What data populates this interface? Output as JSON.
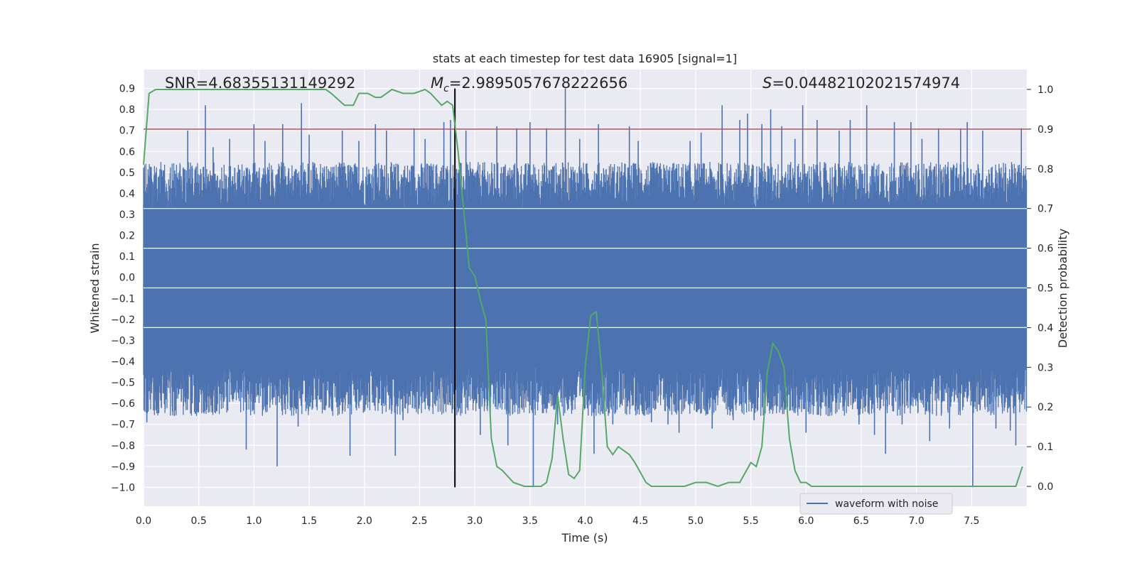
{
  "chart_data": {
    "type": "line",
    "title": "stats at each timestep for test data 16905 [signal=1]",
    "xlabel": "Time (s)",
    "ylabel_left": "Whitened strain",
    "ylabel_right": "Detection probability",
    "xlim": [
      0,
      8
    ],
    "ylim_left": [
      -1.09,
      0.99
    ],
    "ylim_right": [
      -0.05,
      1.05
    ],
    "x_ticks": [
      0.0,
      0.5,
      1.0,
      1.5,
      2.0,
      2.5,
      3.0,
      3.5,
      4.0,
      4.5,
      5.0,
      5.5,
      6.0,
      6.5,
      7.0,
      7.5
    ],
    "x_tick_labels": [
      "0.0",
      "0.5",
      "1.0",
      "1.5",
      "2.0",
      "2.5",
      "3.0",
      "3.5",
      "4.0",
      "4.5",
      "5.0",
      "5.5",
      "6.0",
      "6.5",
      "7.0",
      "7.5"
    ],
    "y_left_ticks": [
      0.9,
      0.8,
      0.7,
      0.6,
      0.5,
      0.4,
      0.3,
      0.2,
      0.1,
      0.0,
      -0.1,
      -0.2,
      -0.3,
      -0.4,
      -0.5,
      -0.6,
      -0.7,
      -0.8,
      -0.9,
      -1.0
    ],
    "y_left_tick_labels": [
      "0.9",
      "0.8",
      "0.7",
      "0.6",
      "0.5",
      "0.4",
      "0.3",
      "0.2",
      "0.1",
      "0.0",
      "−0.1",
      "−0.2",
      "−0.3",
      "−0.4",
      "−0.5",
      "−0.6",
      "−0.7",
      "−0.8",
      "−0.9",
      "−1.0"
    ],
    "y_right_ticks": [
      1.0,
      0.9,
      0.8,
      0.7,
      0.6,
      0.5,
      0.4,
      0.3,
      0.2,
      0.1,
      0.0
    ],
    "y_right_tick_labels": [
      "1.0",
      "0.9",
      "0.8",
      "0.7",
      "0.6",
      "0.5",
      "0.4",
      "0.3",
      "0.2",
      "0.1",
      "0.0"
    ],
    "annotations": {
      "snr": "SNR=4.68355131149292",
      "mc_symbol": "M",
      "mc_sub": "c",
      "mc_value": "=2.9895057678222656",
      "s_symbol": "S",
      "s_value": "=0.04482102021574974"
    },
    "threshold_right": 0.9,
    "vertical_line_x": 2.82,
    "legend": {
      "label": "waveform with noise",
      "placement": "lower-right"
    },
    "waveform": {
      "name": "waveform with noise",
      "duration_s": 8.0,
      "core_band": [
        -0.42,
        0.33
      ],
      "spikes": [
        [
          0.03,
          -0.69
        ],
        [
          0.15,
          -0.55
        ],
        [
          0.28,
          -0.66
        ],
        [
          0.4,
          0.7
        ],
        [
          0.47,
          -0.65
        ],
        [
          0.56,
          0.82
        ],
        [
          0.63,
          0.62
        ],
        [
          0.78,
          0.66
        ],
        [
          0.93,
          -0.82
        ],
        [
          1.0,
          0.73
        ],
        [
          1.1,
          0.65
        ],
        [
          1.21,
          -0.9
        ],
        [
          1.26,
          0.73
        ],
        [
          1.4,
          -0.71
        ],
        [
          1.43,
          0.83
        ],
        [
          1.5,
          0.68
        ],
        [
          1.62,
          -0.63
        ],
        [
          1.8,
          0.7
        ],
        [
          1.87,
          -0.85
        ],
        [
          1.95,
          0.65
        ],
        [
          2.1,
          0.73
        ],
        [
          2.2,
          0.7
        ],
        [
          2.28,
          -0.85
        ],
        [
          2.35,
          -0.68
        ],
        [
          2.45,
          0.71
        ],
        [
          2.55,
          0.66
        ],
        [
          2.62,
          -0.62
        ],
        [
          2.72,
          0.74
        ],
        [
          2.78,
          0.75
        ],
        [
          2.92,
          0.7
        ],
        [
          3.05,
          -0.75
        ],
        [
          3.2,
          0.72
        ],
        [
          3.3,
          -0.8
        ],
        [
          3.38,
          0.71
        ],
        [
          3.5,
          0.74
        ],
        [
          3.53,
          -1.0
        ],
        [
          3.65,
          0.71
        ],
        [
          3.75,
          -0.7
        ],
        [
          3.82,
          0.9
        ],
        [
          3.95,
          0.66
        ],
        [
          4.08,
          -0.84
        ],
        [
          4.12,
          0.73
        ],
        [
          4.25,
          -0.7
        ],
        [
          4.4,
          0.72
        ],
        [
          4.48,
          0.65
        ],
        [
          4.6,
          -0.69
        ],
        [
          4.75,
          -0.7
        ],
        [
          4.85,
          -0.74
        ],
        [
          4.95,
          0.65
        ],
        [
          5.05,
          0.69
        ],
        [
          5.15,
          -0.72
        ],
        [
          5.24,
          0.82
        ],
        [
          5.34,
          -0.68
        ],
        [
          5.4,
          0.75
        ],
        [
          5.47,
          0.78
        ],
        [
          5.53,
          -0.68
        ],
        [
          5.6,
          0.73
        ],
        [
          5.68,
          0.8
        ],
        [
          5.78,
          0.72
        ],
        [
          5.9,
          0.66
        ],
        [
          5.97,
          0.82
        ],
        [
          6.0,
          -0.74
        ],
        [
          6.1,
          0.75
        ],
        [
          6.2,
          -0.66
        ],
        [
          6.3,
          0.7
        ],
        [
          6.4,
          0.75
        ],
        [
          6.48,
          -0.7
        ],
        [
          6.55,
          0.82
        ],
        [
          6.62,
          -0.75
        ],
        [
          6.72,
          -0.84
        ],
        [
          6.8,
          0.74
        ],
        [
          6.87,
          -0.7
        ],
        [
          6.95,
          0.74
        ],
        [
          7.05,
          0.66
        ],
        [
          7.12,
          -0.78
        ],
        [
          7.2,
          0.71
        ],
        [
          7.3,
          -0.72
        ],
        [
          7.4,
          0.71
        ],
        [
          7.46,
          0.74
        ],
        [
          7.51,
          -1.0
        ],
        [
          7.6,
          0.7
        ],
        [
          7.72,
          -0.72
        ],
        [
          7.85,
          -0.73
        ],
        [
          7.9,
          -0.8
        ],
        [
          7.95,
          0.71
        ]
      ]
    },
    "series": [
      {
        "name": "",
        "axis": "right",
        "x": [
          0.0,
          0.05,
          0.11,
          0.2,
          0.4,
          0.6,
          0.8,
          1.0,
          1.2,
          1.4,
          1.5,
          1.6,
          1.65,
          1.7,
          1.78,
          1.82,
          1.9,
          1.95,
          2.03,
          2.1,
          2.15,
          2.25,
          2.35,
          2.45,
          2.55,
          2.6,
          2.7,
          2.75,
          2.8,
          2.85,
          2.95,
          3.0,
          3.05,
          3.1,
          3.15,
          3.2,
          3.25,
          3.35,
          3.45,
          3.55,
          3.6,
          3.65,
          3.7,
          3.75,
          3.8,
          3.85,
          3.9,
          3.95,
          4.0,
          4.05,
          4.1,
          4.15,
          4.2,
          4.25,
          4.3,
          4.35,
          4.4,
          4.45,
          4.55,
          4.6,
          4.7,
          4.8,
          4.9,
          5.0,
          5.1,
          5.2,
          5.3,
          5.4,
          5.5,
          5.55,
          5.6,
          5.65,
          5.7,
          5.75,
          5.8,
          5.85,
          5.9,
          5.95,
          6.0,
          6.05,
          6.15,
          6.25,
          6.35,
          6.45,
          6.55,
          6.65,
          6.75,
          6.85,
          6.95,
          7.05,
          7.15,
          7.25,
          7.35,
          7.45,
          7.55,
          7.65,
          7.75,
          7.8,
          7.85,
          7.9,
          7.96
        ],
        "values": [
          0.81,
          0.99,
          1.0,
          1.0,
          1.0,
          1.0,
          1.0,
          1.0,
          1.0,
          1.0,
          1.0,
          1.0,
          1.0,
          0.99,
          0.97,
          0.96,
          0.96,
          0.99,
          0.99,
          0.98,
          0.98,
          1.0,
          0.99,
          0.99,
          1.0,
          0.99,
          0.96,
          0.97,
          0.96,
          0.84,
          0.55,
          0.53,
          0.47,
          0.42,
          0.12,
          0.05,
          0.04,
          0.01,
          0.0,
          0.0,
          0.0,
          0.01,
          0.07,
          0.23,
          0.12,
          0.03,
          0.02,
          0.04,
          0.3,
          0.43,
          0.44,
          0.29,
          0.1,
          0.08,
          0.1,
          0.09,
          0.08,
          0.06,
          0.01,
          0.0,
          0.0,
          0.0,
          0.0,
          0.01,
          0.01,
          0.0,
          0.01,
          0.01,
          0.06,
          0.05,
          0.1,
          0.29,
          0.36,
          0.34,
          0.3,
          0.12,
          0.04,
          0.01,
          0.01,
          0.0,
          0.0,
          0.0,
          0.0,
          0.0,
          0.0,
          0.0,
          0.0,
          0.0,
          0.0,
          0.0,
          0.0,
          0.0,
          0.0,
          0.0,
          0.0,
          0.0,
          0.0,
          0.0,
          0.0,
          0.0,
          0.05
        ]
      }
    ]
  }
}
